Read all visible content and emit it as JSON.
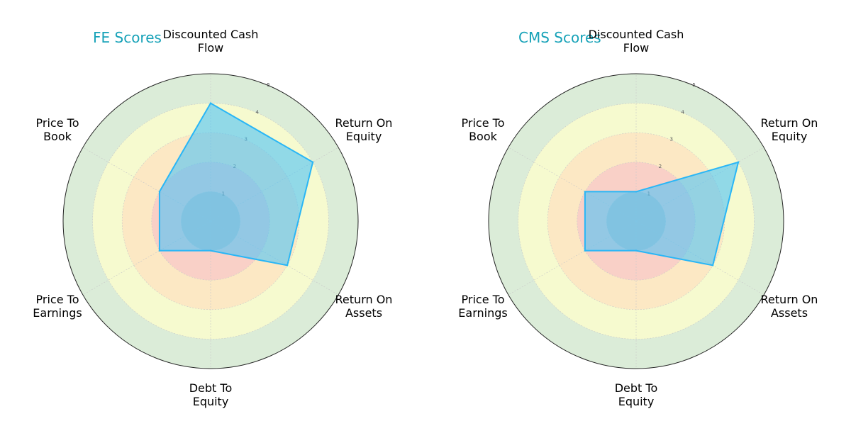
{
  "colors": {
    "title": "#17a2b8",
    "series_fill": "#4fc3f7",
    "series_line": "#29b6f6",
    "band_1": "#bfbfbf",
    "band_2": "#f8c8c8",
    "band_3": "#fde2c0",
    "band_4": "#ffffcc",
    "band_5": "#cfe5cb",
    "outline": "#222222"
  },
  "chart_data": [
    {
      "type": "radar",
      "title": "FE Scores",
      "categories": [
        "Discounted Cash\nFlow",
        "Return On\nEquity",
        "Return On\nAssets",
        "Debt To\nEquity",
        "Price To\nEarnings",
        "Price To\nBook"
      ],
      "series": [
        {
          "values": [
            4,
            4,
            3,
            1,
            2,
            2
          ]
        }
      ],
      "rlim": [
        0,
        5
      ],
      "ring_ticks": [
        "1",
        "2",
        "3",
        "4",
        "5"
      ],
      "grid": true
    },
    {
      "type": "radar",
      "title": "CMS Scores",
      "categories": [
        "Discounted Cash\nFlow",
        "Return On\nEquity",
        "Return On\nAssets",
        "Debt To\nEquity",
        "Price To\nEarnings",
        "Price To\nBook"
      ],
      "series": [
        {
          "values": [
            1,
            4,
            3,
            1,
            2,
            2
          ]
        }
      ],
      "rlim": [
        0,
        5
      ],
      "ring_ticks": [
        "1",
        "2",
        "3",
        "4",
        "5"
      ],
      "grid": true
    }
  ]
}
